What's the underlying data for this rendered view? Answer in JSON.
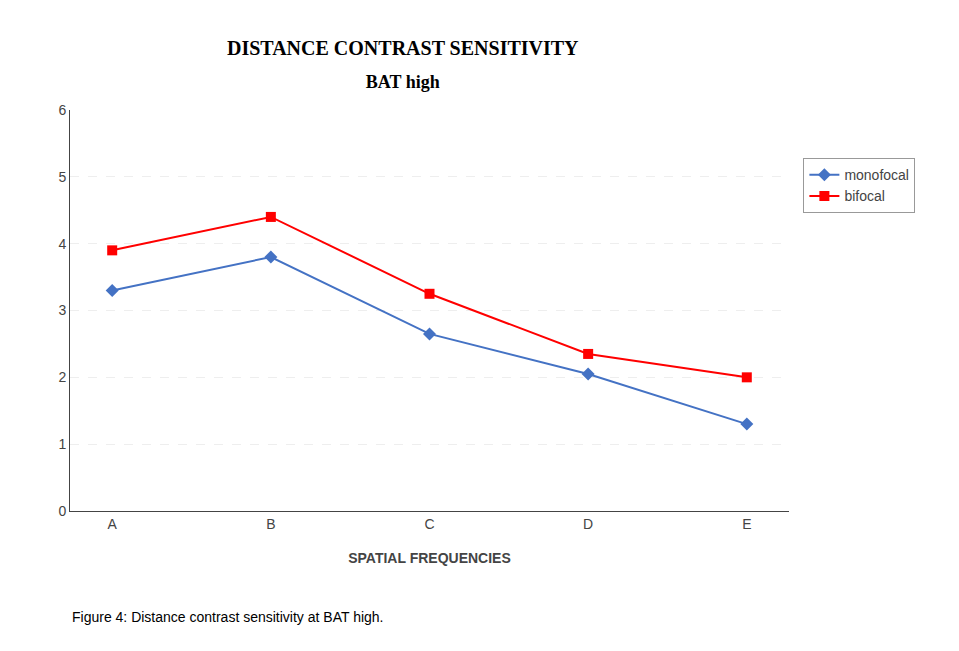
{
  "chart_data": {
    "type": "line",
    "title": "DISTANCE CONTRAST SENSITIVITY",
    "subtitle": "BAT high",
    "xlabel": "SPATIAL FREQUENCIES",
    "categories": [
      "A",
      "B",
      "C",
      "D",
      "E"
    ],
    "series": [
      {
        "name": "monofocal",
        "color": "#4472C4",
        "marker": "diamond",
        "values": [
          3.3,
          3.8,
          2.65,
          2.05,
          1.3
        ]
      },
      {
        "name": "bifocal",
        "color": "#FF0000",
        "marker": "square",
        "values": [
          3.9,
          4.4,
          3.25,
          2.35,
          2.0
        ]
      }
    ],
    "ylim": [
      0,
      6
    ],
    "yticks": [
      0,
      1,
      2,
      3,
      4,
      5,
      6
    ],
    "grid": true,
    "legend": "right",
    "annotations": [
      "Figure 4: Distance contrast sensitivity at BAT high."
    ]
  }
}
